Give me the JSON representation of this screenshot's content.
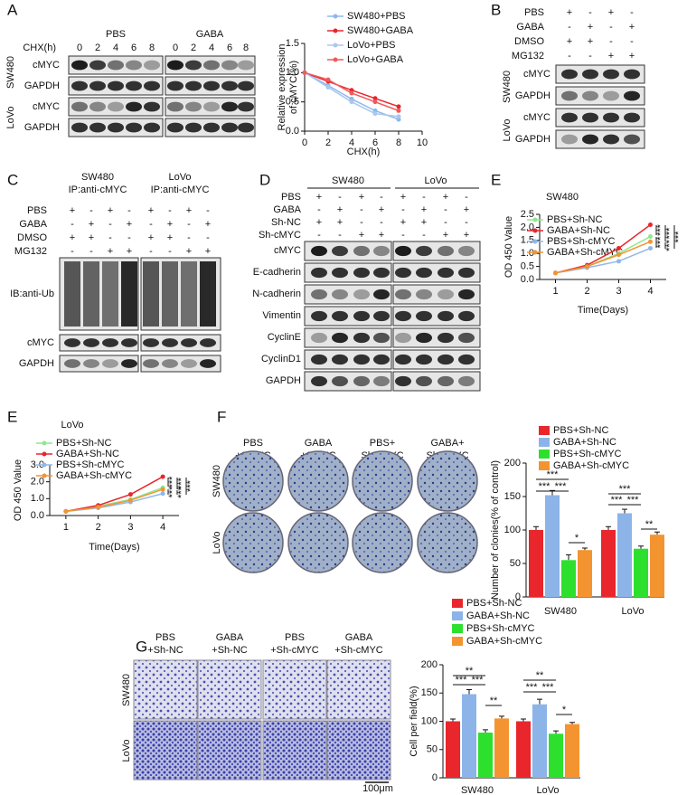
{
  "panel_labels": [
    "A",
    "B",
    "C",
    "D",
    "E",
    "E",
    "F",
    "G"
  ],
  "blots": {
    "A": {
      "groups": [
        "PBS",
        "GABA"
      ],
      "row_header": "CHX(h)",
      "lanes": [
        0,
        2,
        4,
        6,
        8,
        0,
        2,
        4,
        6,
        8
      ],
      "rows": [
        "cMYC",
        "GAPDH",
        "cMYC",
        "GAPDH"
      ],
      "cell_lines": [
        "SW480",
        "LoVo"
      ]
    },
    "B": {
      "treatments": [
        {
          "name": "PBS",
          "signs": [
            "+",
            "-",
            "+",
            "-"
          ]
        },
        {
          "name": "GABA",
          "signs": [
            "-",
            "+",
            "-",
            "+"
          ]
        },
        {
          "name": "DMSO",
          "signs": [
            "+",
            "+",
            "-",
            "-"
          ]
        },
        {
          "name": "MG132",
          "signs": [
            "-",
            "-",
            "+",
            "+"
          ]
        }
      ],
      "rows": [
        "cMYC",
        "GAPDH",
        "cMYC",
        "GAPDH"
      ],
      "cell_lines": [
        "SW480",
        "LoVo"
      ]
    },
    "C": {
      "groups": [
        {
          "cell_line": "SW480",
          "ip": "IP:anti-cMYC"
        },
        {
          "cell_line": "LoVo",
          "ip": "IP:anti-cMYC"
        }
      ],
      "treatments": [
        {
          "name": "PBS",
          "signs": [
            "+",
            "-",
            "+",
            "-",
            "+",
            "-",
            "+",
            "-"
          ]
        },
        {
          "name": "GABA",
          "signs": [
            "-",
            "+",
            "-",
            "+",
            "-",
            "+",
            "-",
            "+"
          ]
        },
        {
          "name": "DMSO",
          "signs": [
            "+",
            "+",
            "-",
            "-",
            "+",
            "+",
            "-",
            "-"
          ]
        },
        {
          "name": "MG132",
          "signs": [
            "-",
            "-",
            "+",
            "+",
            "-",
            "-",
            "+",
            "+"
          ]
        }
      ],
      "rows": [
        "IB:anti-Ub",
        "cMYC",
        "GAPDH"
      ]
    },
    "D": {
      "groups": [
        "SW480",
        "LoVo"
      ],
      "treatments": [
        {
          "name": "PBS",
          "signs": [
            "+",
            "-",
            "+",
            "-",
            "+",
            "-",
            "+",
            "-"
          ]
        },
        {
          "name": "GABA",
          "signs": [
            "-",
            "+",
            "-",
            "+",
            "-",
            "+",
            "-",
            "+"
          ]
        },
        {
          "name": "Sh-NC",
          "signs": [
            "+",
            "+",
            "-",
            "-",
            "+",
            "+",
            "-",
            "-"
          ]
        },
        {
          "name": "Sh-cMYC",
          "signs": [
            "-",
            "-",
            "+",
            "+",
            "-",
            "-",
            "+",
            "+"
          ]
        }
      ],
      "rows": [
        "cMYC",
        "E-cadherin",
        "N-cadherin",
        "Vimentin",
        "CyclinE",
        "CyclinD1",
        "GAPDH"
      ]
    }
  },
  "images": {
    "F": {
      "conditions": [
        [
          "PBS",
          "+Sh-NC"
        ],
        [
          "GABA",
          "+Sh-NC"
        ],
        [
          "PBS+",
          "Sh-cMYC"
        ],
        [
          "GABA+",
          "Sh-cMYC"
        ]
      ],
      "rows": [
        "SW480",
        "LoVo"
      ]
    },
    "G": {
      "conditions": [
        [
          "PBS",
          "+Sh-NC"
        ],
        [
          "GABA",
          "+Sh-NC"
        ],
        [
          "PBS",
          "+Sh-cMYC"
        ],
        [
          "GABA",
          "+Sh-cMYC"
        ]
      ],
      "rows": [
        "SW480",
        "LoVo"
      ],
      "scale_bar": "100μm"
    }
  },
  "chart_data": [
    {
      "type": "line",
      "x": [
        0,
        2,
        4,
        6,
        8
      ],
      "xlim": [
        0,
        10
      ],
      "xticks": [
        0,
        2,
        4,
        6,
        8,
        10
      ],
      "ylim": [
        0,
        1.5
      ],
      "yticks": [
        {
          "value": 0,
          "label": "0.0"
        },
        0.5,
        {
          "value": 1,
          "label": "1.0"
        },
        1.5
      ],
      "xlabel": "CHX(h)",
      "ylabel": [
        "Relative expression",
        "of cMYC(%)"
      ],
      "series": [
        {
          "name": "SW480+PBS",
          "color": "#8fb8ea",
          "values": [
            1.0,
            0.78,
            0.55,
            0.35,
            0.2
          ]
        },
        {
          "name": "SW480+GABA",
          "color": "#e8262b",
          "values": [
            1.0,
            0.85,
            0.7,
            0.56,
            0.42
          ]
        },
        {
          "name": "LoVo+PBS",
          "color": "#a9c8ef",
          "values": [
            1.0,
            0.75,
            0.5,
            0.3,
            0.25
          ]
        },
        {
          "name": "LoVo+GABA",
          "color": "#f05a5a",
          "values": [
            1.0,
            0.88,
            0.65,
            0.5,
            0.35
          ]
        }
      ]
    },
    {
      "type": "line",
      "title": "SW480",
      "x": [
        1,
        2,
        3,
        4
      ],
      "xlim": [
        0.5,
        4.5
      ],
      "xticks": [
        1,
        2,
        3,
        4
      ],
      "ylim": [
        0,
        2.5
      ],
      "yticks": [
        {
          "value": 0,
          "label": "0.0"
        },
        0.5,
        {
          "value": 1,
          "label": "1.0"
        },
        1.5,
        {
          "value": 2,
          "label": "2.0"
        },
        2.5
      ],
      "xlabel": "Time(Days)",
      "ylabel": "OD 450 Value",
      "series": [
        {
          "name": "PBS+Sh-NC",
          "color": "#8ee88e",
          "values": [
            0.25,
            0.5,
            1.0,
            1.65
          ],
          "errors": [
            0.02,
            0.03,
            0.04,
            0.06
          ]
        },
        {
          "name": "GABA+Sh-NC",
          "color": "#e8262b",
          "values": [
            0.25,
            0.55,
            1.2,
            2.1
          ],
          "errors": [
            0.02,
            0.03,
            0.04,
            0.08
          ]
        },
        {
          "name": "PBS+Sh-cMYC",
          "color": "#8fb8ea",
          "values": [
            0.25,
            0.45,
            0.7,
            1.2
          ],
          "errors": [
            0.02,
            0.03,
            0.04,
            0.05
          ]
        },
        {
          "name": "GABA+Sh-cMYC",
          "color": "#f39430",
          "values": [
            0.25,
            0.5,
            0.95,
            1.45
          ],
          "errors": [
            0.02,
            0.03,
            0.04,
            0.06
          ]
        }
      ],
      "annotations": [
        "***",
        "***",
        "***",
        "***",
        "***"
      ]
    },
    {
      "type": "line",
      "title": "LoVo",
      "x": [
        1,
        2,
        3,
        4
      ],
      "xlim": [
        0.5,
        4.5
      ],
      "xticks": [
        1,
        2,
        3,
        4
      ],
      "ylim": [
        0,
        3
      ],
      "yticks": [
        {
          "value": 0,
          "label": "0.0"
        },
        {
          "value": 1,
          "label": "1.0"
        },
        {
          "value": 2,
          "label": "2.0"
        },
        {
          "value": 3,
          "label": "3.0"
        }
      ],
      "xlabel": "Time(Days)",
      "ylabel": "OD 450 Value",
      "series": [
        {
          "name": "PBS+Sh-NC",
          "color": "#8ee88e",
          "values": [
            0.25,
            0.55,
            0.95,
            1.65
          ],
          "errors": [
            0.02,
            0.03,
            0.05,
            0.07
          ]
        },
        {
          "name": "GABA+Sh-NC",
          "color": "#e8262b",
          "values": [
            0.25,
            0.6,
            1.25,
            2.3
          ],
          "errors": [
            0.02,
            0.03,
            0.05,
            0.1
          ]
        },
        {
          "name": "PBS+Sh-cMYC",
          "color": "#8fb8ea",
          "values": [
            0.25,
            0.45,
            0.8,
            1.3
          ],
          "errors": [
            0.02,
            0.03,
            0.04,
            0.06
          ]
        },
        {
          "name": "GABA+Sh-cMYC",
          "color": "#f39430",
          "values": [
            0.25,
            0.5,
            0.9,
            1.55
          ],
          "errors": [
            0.02,
            0.03,
            0.05,
            0.07
          ]
        }
      ],
      "annotations": [
        "***",
        "***",
        "***",
        "***",
        "***"
      ]
    },
    {
      "type": "bar",
      "categories": [
        "SW480",
        "LoVo"
      ],
      "ylim": [
        0,
        200
      ],
      "yticks": [
        0,
        50,
        100,
        150,
        200
      ],
      "ylabel": "Number of clonies(% of control)",
      "series": [
        {
          "name": "PBS+Sh-NC",
          "color": "#e8262b",
          "values": [
            100,
            100
          ],
          "errors": [
            5,
            5
          ]
        },
        {
          "name": "GABA+Sh-NC",
          "color": "#8cb4e8",
          "values": [
            152,
            125
          ],
          "errors": [
            7,
            6
          ]
        },
        {
          "name": "PBS+Sh-cMYC",
          "color": "#2ee02e",
          "values": [
            55,
            72
          ],
          "errors": [
            8,
            4
          ]
        },
        {
          "name": "GABA+Sh-cMYC",
          "color": "#f39430",
          "values": [
            70,
            93
          ],
          "errors": [
            3,
            4
          ]
        }
      ],
      "annotations": [
        "***",
        "***",
        "***",
        "*",
        "***",
        "***",
        "***",
        "**"
      ]
    },
    {
      "type": "bar",
      "categories": [
        "SW480",
        "LoVo"
      ],
      "ylim": [
        0,
        200
      ],
      "yticks": [
        0,
        50,
        100,
        150,
        200
      ],
      "ylabel": "Cell per field(%)",
      "series": [
        {
          "name": "PBS+Sh-NC",
          "color": "#e8262b",
          "values": [
            100,
            100
          ],
          "errors": [
            4,
            4
          ]
        },
        {
          "name": "GABA+Sh-NC",
          "color": "#8cb4e8",
          "values": [
            148,
            130
          ],
          "errors": [
            8,
            9
          ]
        },
        {
          "name": "PBS+Sh-cMYC",
          "color": "#2ee02e",
          "values": [
            80,
            78
          ],
          "errors": [
            5,
            5
          ]
        },
        {
          "name": "GABA+Sh-cMYC",
          "color": "#f39430",
          "values": [
            105,
            95
          ],
          "errors": [
            4,
            3
          ]
        }
      ],
      "annotations": [
        "**",
        "***",
        "***",
        "**",
        "**",
        "***",
        "***",
        "*"
      ]
    }
  ]
}
